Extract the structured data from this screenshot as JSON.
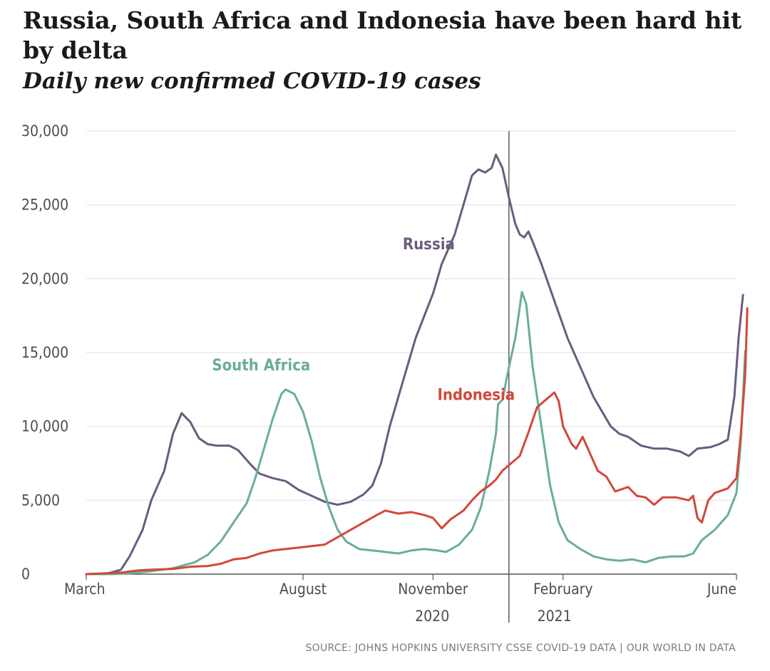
{
  "title": "Russia, South Africa and Indonesia have been hard hit by delta",
  "subtitle": "Daily new confirmed COVID-19 cases",
  "source": "SOURCE: JOHNS HOPKINS UNIVERSITY CSSE COVID-19 DATA | OUR WORLD IN DATA",
  "colors": {
    "russia": "#6b5b7f",
    "south_africa": "#6aad9b",
    "indonesia": "#d2483a",
    "grid": "#e6e6e6",
    "axis": "#555555",
    "divider": "#666666"
  },
  "chart_data": {
    "type": "line",
    "title": "Russia, South Africa and Indonesia have been hard hit by delta",
    "subtitle": "Daily new confirmed COVID-19 cases",
    "xlabel": "",
    "ylabel": "",
    "x_unit": "months since March 2020",
    "xlim": [
      0,
      15
    ],
    "ylim": [
      0,
      30000
    ],
    "yticks": [
      0,
      5000,
      10000,
      15000,
      20000,
      25000,
      30000
    ],
    "ytick_labels": [
      "0",
      "5,000",
      "10,000",
      "15,000",
      "20,000",
      "25,000",
      "30,000"
    ],
    "xticks": [
      0,
      5,
      8,
      11,
      15
    ],
    "xtick_labels": [
      "March",
      "August",
      "November",
      "February",
      "June"
    ],
    "year_divider": 9.75,
    "year_labels": [
      {
        "x": 7.98,
        "label": "2020"
      },
      {
        "x": 10.8,
        "label": "2021"
      }
    ],
    "grid": true,
    "series": [
      {
        "name": "Russia",
        "color_key": "russia",
        "label_pos": {
          "x": 7.3,
          "y": 22000
        },
        "points": [
          [
            0,
            0
          ],
          [
            0.5,
            50
          ],
          [
            0.8,
            300
          ],
          [
            1.0,
            1200
          ],
          [
            1.3,
            3000
          ],
          [
            1.5,
            5000
          ],
          [
            1.8,
            7000
          ],
          [
            2.0,
            9500
          ],
          [
            2.2,
            10900
          ],
          [
            2.4,
            10300
          ],
          [
            2.6,
            9200
          ],
          [
            2.8,
            8800
          ],
          [
            3.0,
            8700
          ],
          [
            3.3,
            8700
          ],
          [
            3.5,
            8400
          ],
          [
            3.8,
            7400
          ],
          [
            4.0,
            6800
          ],
          [
            4.3,
            6500
          ],
          [
            4.6,
            6300
          ],
          [
            4.9,
            5700
          ],
          [
            5.2,
            5300
          ],
          [
            5.5,
            4900
          ],
          [
            5.8,
            4700
          ],
          [
            6.1,
            4900
          ],
          [
            6.4,
            5400
          ],
          [
            6.6,
            6000
          ],
          [
            6.8,
            7500
          ],
          [
            7.0,
            10000
          ],
          [
            7.3,
            13000
          ],
          [
            7.6,
            16000
          ],
          [
            7.8,
            17500
          ],
          [
            8.0,
            19000
          ],
          [
            8.2,
            21000
          ],
          [
            8.5,
            23000
          ],
          [
            8.7,
            25000
          ],
          [
            8.9,
            27000
          ],
          [
            9.05,
            27400
          ],
          [
            9.2,
            27200
          ],
          [
            9.35,
            27500
          ],
          [
            9.45,
            28400
          ],
          [
            9.6,
            27500
          ],
          [
            9.75,
            25500
          ],
          [
            9.9,
            23700
          ],
          [
            10.0,
            23000
          ],
          [
            10.1,
            22800
          ],
          [
            10.2,
            23200
          ],
          [
            10.3,
            22500
          ],
          [
            10.5,
            21000
          ],
          [
            10.8,
            18500
          ],
          [
            11.1,
            16000
          ],
          [
            11.4,
            14000
          ],
          [
            11.7,
            12000
          ],
          [
            11.9,
            11000
          ],
          [
            12.1,
            10000
          ],
          [
            12.3,
            9500
          ],
          [
            12.5,
            9300
          ],
          [
            12.8,
            8700
          ],
          [
            13.1,
            8500
          ],
          [
            13.4,
            8500
          ],
          [
            13.7,
            8300
          ],
          [
            13.9,
            8000
          ],
          [
            14.1,
            8500
          ],
          [
            14.4,
            8600
          ],
          [
            14.6,
            8800
          ],
          [
            14.8,
            9100
          ],
          [
            14.95,
            12000
          ],
          [
            15.05,
            16000
          ],
          [
            15.15,
            18900
          ]
        ]
      },
      {
        "name": "South Africa",
        "color_key": "south_africa",
        "label_pos": {
          "x": 2.9,
          "y": 13800
        },
        "points": [
          [
            0,
            0
          ],
          [
            0.6,
            0
          ],
          [
            1.0,
            50
          ],
          [
            1.5,
            200
          ],
          [
            2.0,
            400
          ],
          [
            2.5,
            800
          ],
          [
            2.8,
            1300
          ],
          [
            3.1,
            2200
          ],
          [
            3.4,
            3500
          ],
          [
            3.7,
            4800
          ],
          [
            3.9,
            6500
          ],
          [
            4.1,
            8500
          ],
          [
            4.3,
            10500
          ],
          [
            4.5,
            12200
          ],
          [
            4.6,
            12500
          ],
          [
            4.8,
            12200
          ],
          [
            5.0,
            11000
          ],
          [
            5.2,
            9000
          ],
          [
            5.4,
            6500
          ],
          [
            5.6,
            4500
          ],
          [
            5.8,
            3000
          ],
          [
            6.0,
            2200
          ],
          [
            6.3,
            1700
          ],
          [
            6.6,
            1600
          ],
          [
            6.9,
            1500
          ],
          [
            7.2,
            1400
          ],
          [
            7.5,
            1600
          ],
          [
            7.8,
            1700
          ],
          [
            8.1,
            1600
          ],
          [
            8.3,
            1500
          ],
          [
            8.6,
            2000
          ],
          [
            8.9,
            3000
          ],
          [
            9.1,
            4500
          ],
          [
            9.3,
            7000
          ],
          [
            9.45,
            9500
          ],
          [
            9.5,
            11500
          ],
          [
            9.6,
            11800
          ],
          [
            9.75,
            14000
          ],
          [
            9.9,
            16000
          ],
          [
            10.05,
            19100
          ],
          [
            10.15,
            18300
          ],
          [
            10.3,
            14000
          ],
          [
            10.5,
            10000
          ],
          [
            10.7,
            6000
          ],
          [
            10.9,
            3500
          ],
          [
            11.1,
            2300
          ],
          [
            11.4,
            1700
          ],
          [
            11.7,
            1200
          ],
          [
            12.0,
            1000
          ],
          [
            12.3,
            900
          ],
          [
            12.6,
            1000
          ],
          [
            12.9,
            800
          ],
          [
            13.2,
            1100
          ],
          [
            13.5,
            1200
          ],
          [
            13.8,
            1200
          ],
          [
            14.0,
            1400
          ],
          [
            14.2,
            2300
          ],
          [
            14.5,
            3000
          ],
          [
            14.8,
            4000
          ],
          [
            15.0,
            5500
          ],
          [
            15.1,
            9000
          ],
          [
            15.15,
            12000
          ],
          [
            15.2,
            15100
          ]
        ]
      },
      {
        "name": "Indonesia",
        "color_key": "indonesia",
        "label_pos": {
          "x": 8.1,
          "y": 11800
        },
        "points": [
          [
            0,
            0
          ],
          [
            0.8,
            100
          ],
          [
            1.2,
            250
          ],
          [
            1.5,
            300
          ],
          [
            2.0,
            350
          ],
          [
            2.4,
            500
          ],
          [
            2.8,
            550
          ],
          [
            3.1,
            700
          ],
          [
            3.4,
            1000
          ],
          [
            3.7,
            1100
          ],
          [
            4.0,
            1400
          ],
          [
            4.3,
            1600
          ],
          [
            4.6,
            1700
          ],
          [
            4.9,
            1800
          ],
          [
            5.2,
            1900
          ],
          [
            5.5,
            2000
          ],
          [
            5.8,
            2500
          ],
          [
            6.1,
            3000
          ],
          [
            6.4,
            3500
          ],
          [
            6.7,
            4000
          ],
          [
            6.9,
            4300
          ],
          [
            7.2,
            4100
          ],
          [
            7.5,
            4200
          ],
          [
            7.8,
            4000
          ],
          [
            8.0,
            3800
          ],
          [
            8.2,
            3100
          ],
          [
            8.4,
            3700
          ],
          [
            8.7,
            4300
          ],
          [
            8.9,
            5000
          ],
          [
            9.1,
            5600
          ],
          [
            9.3,
            6000
          ],
          [
            9.45,
            6400
          ],
          [
            9.6,
            7000
          ],
          [
            9.8,
            7500
          ],
          [
            10.0,
            8000
          ],
          [
            10.2,
            9600
          ],
          [
            10.4,
            11300
          ],
          [
            10.6,
            11800
          ],
          [
            10.8,
            12300
          ],
          [
            10.9,
            11700
          ],
          [
            11.0,
            10000
          ],
          [
            11.2,
            8800
          ],
          [
            11.3,
            8500
          ],
          [
            11.45,
            9300
          ],
          [
            11.6,
            8300
          ],
          [
            11.8,
            7000
          ],
          [
            12.0,
            6600
          ],
          [
            12.2,
            5600
          ],
          [
            12.5,
            5900
          ],
          [
            12.7,
            5300
          ],
          [
            12.9,
            5200
          ],
          [
            13.1,
            4700
          ],
          [
            13.3,
            5200
          ],
          [
            13.6,
            5200
          ],
          [
            13.9,
            5000
          ],
          [
            14.0,
            5300
          ],
          [
            14.1,
            3800
          ],
          [
            14.2,
            3500
          ],
          [
            14.35,
            5000
          ],
          [
            14.5,
            5500
          ],
          [
            14.8,
            5800
          ],
          [
            15.0,
            6500
          ],
          [
            15.1,
            9500
          ],
          [
            15.2,
            13500
          ],
          [
            15.25,
            18000
          ]
        ]
      }
    ]
  }
}
